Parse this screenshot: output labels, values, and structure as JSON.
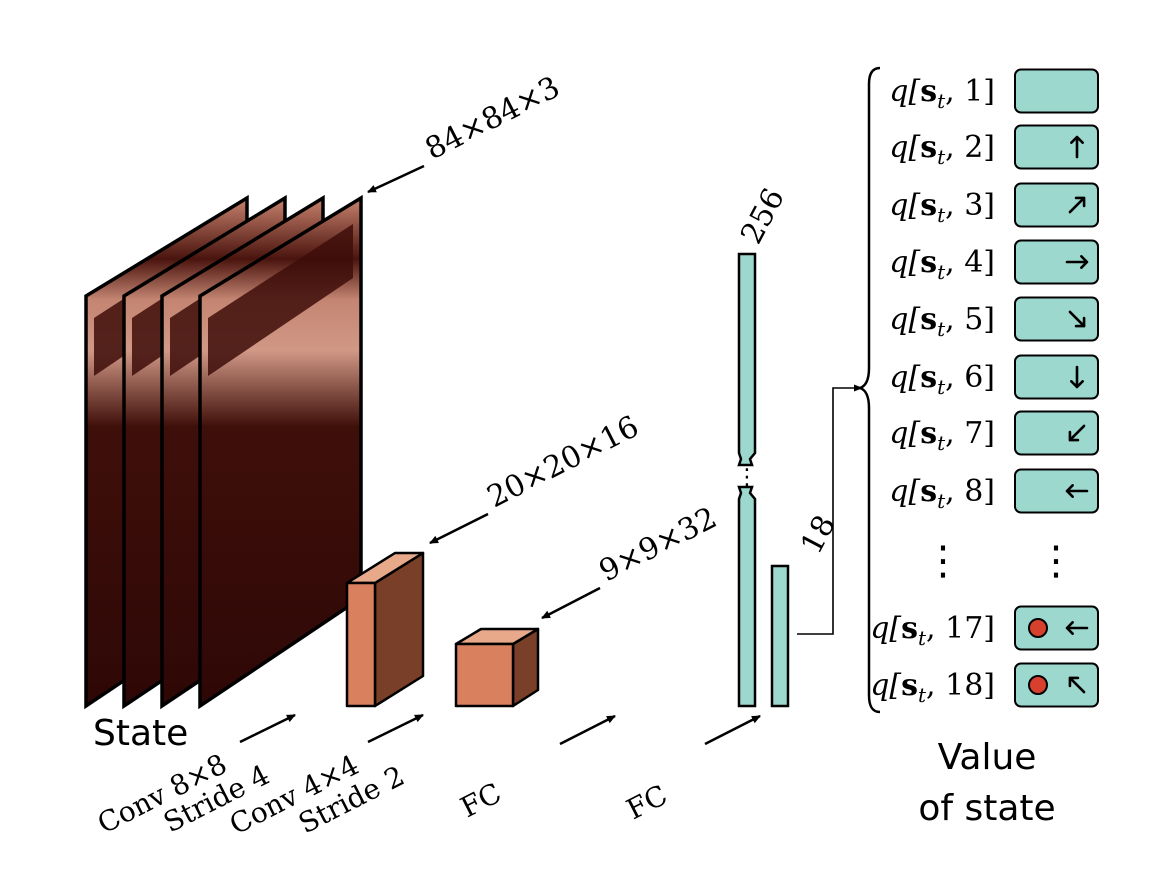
{
  "state_label": "State",
  "input_dim": "84×84×3",
  "conv1_dim": "20×20×16",
  "conv2_dim": "9×9×32",
  "fc1_units": "256",
  "fc2_units": "18",
  "layers": {
    "conv1_line1": "Conv 8×8",
    "conv1_line2": "Stride 4",
    "conv2_line1": "Conv 4×4",
    "conv2_line2": "Stride 2",
    "fc1": "FC",
    "fc2": "FC"
  },
  "output_title_line1": "Value",
  "output_title_line2": "of state",
  "outputs": [
    {
      "prefix": "q[",
      "state": "s",
      "sub": "t",
      "index": ", 1]",
      "action_icon": "none-icon"
    },
    {
      "prefix": "q[",
      "state": "s",
      "sub": "t",
      "index": ", 2]",
      "action_icon": "arrow-up-icon"
    },
    {
      "prefix": "q[",
      "state": "s",
      "sub": "t",
      "index": ", 3]",
      "action_icon": "arrow-up-right-icon"
    },
    {
      "prefix": "q[",
      "state": "s",
      "sub": "t",
      "index": ", 4]",
      "action_icon": "arrow-right-icon"
    },
    {
      "prefix": "q[",
      "state": "s",
      "sub": "t",
      "index": ", 5]",
      "action_icon": "arrow-down-right-icon"
    },
    {
      "prefix": "q[",
      "state": "s",
      "sub": "t",
      "index": ", 6]",
      "action_icon": "arrow-down-icon"
    },
    {
      "prefix": "q[",
      "state": "s",
      "sub": "t",
      "index": ", 7]",
      "action_icon": "arrow-down-left-icon"
    },
    {
      "prefix": "q[",
      "state": "s",
      "sub": "t",
      "index": ", 8]",
      "action_icon": "arrow-left-icon"
    },
    {
      "prefix": "q[",
      "state": "s",
      "sub": "t",
      "index": ", 17]",
      "action_icon": "fire-arrow-left-icon"
    },
    {
      "prefix": "q[",
      "state": "s",
      "sub": "t",
      "index": ", 18]",
      "action_icon": "fire-arrow-up-left-icon"
    }
  ],
  "ellipsis_glyph": "⋮",
  "colors": {
    "teal": "#9dd8cf",
    "cube_front": "#d9805f",
    "cube_side": "#7a3f28",
    "cube_top": "#e8a88a",
    "frame_dark": "#3a0c08",
    "frame_light": "#c97962",
    "fire_dot": "#d8402e"
  }
}
